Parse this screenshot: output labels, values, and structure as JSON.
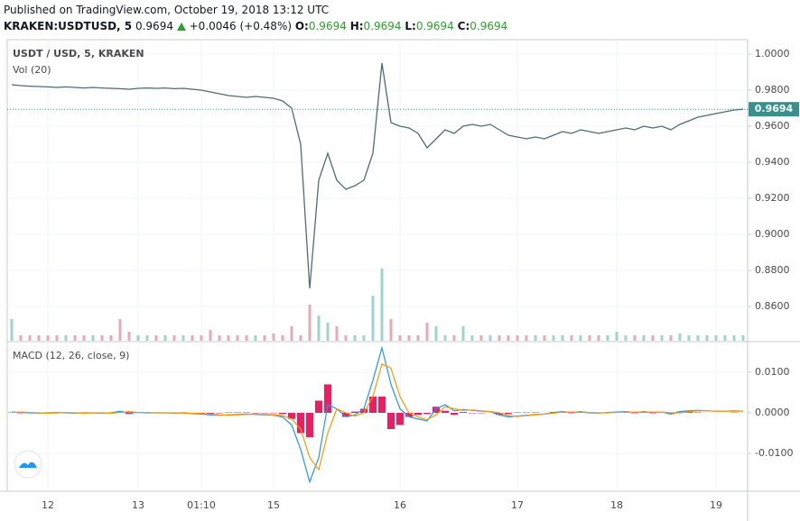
{
  "header": {
    "published": "Published on TradingView.com, October 19, 2018 13:12 UTC",
    "symbol": "KRAKEN:USDTUSD, 5",
    "price": "0.9694",
    "change": "+0.0046 (+0.48%)",
    "ohlc": [
      {
        "label": "O:",
        "value": "0.9694"
      },
      {
        "label": "H:",
        "value": "0.9694"
      },
      {
        "label": "L:",
        "value": "0.9694"
      },
      {
        "label": "C:",
        "value": "0.9694"
      }
    ]
  },
  "chart_data": [
    {
      "type": "line",
      "title": "USDT / USD, 5, KRAKEN",
      "color": "#4e6e6c",
      "categories": [
        null,
        null,
        null,
        null,
        "12",
        null,
        null,
        null,
        null,
        null,
        null,
        null,
        null,
        null,
        "13",
        null,
        null,
        null,
        null,
        null,
        null,
        "01:10",
        null,
        null,
        null,
        null,
        null,
        null,
        null,
        "15",
        null,
        null,
        null,
        null,
        null,
        null,
        null,
        null,
        null,
        null,
        null,
        null,
        null,
        "16",
        null,
        null,
        null,
        null,
        null,
        null,
        null,
        null,
        null,
        null,
        null,
        null,
        "17",
        null,
        null,
        null,
        null,
        null,
        null,
        null,
        null,
        null,
        null,
        "18",
        null,
        null,
        null,
        null,
        null,
        null,
        null,
        null,
        null,
        null,
        "19",
        null,
        null,
        null
      ],
      "values": [
        0.983,
        0.9825,
        0.9822,
        0.982,
        0.9818,
        0.9815,
        0.9818,
        0.9815,
        0.9812,
        0.9815,
        0.9812,
        0.981,
        0.9808,
        0.9805,
        0.981,
        0.9812,
        0.981,
        0.9812,
        0.9808,
        0.981,
        0.9805,
        0.98,
        0.979,
        0.978,
        0.977,
        0.9765,
        0.976,
        0.9765,
        0.976,
        0.9755,
        0.974,
        0.97,
        0.95,
        0.87,
        0.93,
        0.945,
        0.93,
        0.925,
        0.927,
        0.93,
        0.945,
        0.995,
        0.962,
        0.96,
        0.959,
        0.956,
        0.948,
        0.953,
        0.958,
        0.956,
        0.96,
        0.961,
        0.96,
        0.961,
        0.958,
        0.955,
        0.954,
        0.953,
        0.954,
        0.953,
        0.955,
        0.957,
        0.956,
        0.958,
        0.957,
        0.956,
        0.957,
        0.958,
        0.959,
        0.958,
        0.96,
        0.959,
        0.96,
        0.958,
        0.961,
        0.963,
        0.965,
        0.966,
        0.967,
        0.968,
        0.969,
        0.9694
      ],
      "ylim": [
        0.841,
        1.0075
      ],
      "yticks": [
        {
          "value": 0.86,
          "label": "0.8600"
        },
        {
          "value": 0.88,
          "label": "0.8800"
        },
        {
          "value": 0.9,
          "label": "0.9000"
        },
        {
          "value": 0.92,
          "label": "0.9200"
        },
        {
          "value": 0.94,
          "label": "0.9400"
        },
        {
          "value": 0.96,
          "label": "0.9600"
        },
        {
          "value": 0.98,
          "label": "0.9800"
        },
        {
          "value": 1.0,
          "label": "1.0000"
        }
      ],
      "last_price": 0.9694,
      "last_price_color": "#38918c",
      "grid": true,
      "volume": {
        "title": "Vol (20)",
        "ylim": [
          0,
          50
        ],
        "up_color": "#9fd4cd",
        "down_color": "#e6a9b6",
        "values": [
          12,
          3,
          3,
          3,
          3,
          3,
          3,
          3,
          3,
          3,
          3,
          3,
          12,
          5,
          3,
          3,
          3,
          3,
          3,
          3,
          3,
          3,
          6,
          3,
          3,
          3,
          3,
          3,
          3,
          4,
          3,
          8,
          3,
          20,
          14,
          10,
          8,
          3,
          3,
          3,
          25,
          40,
          12,
          3,
          3,
          3,
          10,
          8,
          3,
          3,
          8,
          3,
          3,
          3,
          3,
          3,
          3,
          3,
          3,
          3,
          3,
          3,
          3,
          3,
          3,
          3,
          3,
          5,
          3,
          3,
          3,
          3,
          3,
          3,
          4,
          3,
          3,
          3,
          3,
          3,
          3,
          3
        ]
      }
    },
    {
      "type": "macd",
      "title": "MACD (12, 26, close, 9)",
      "ylim": [
        -0.0193,
        0.0173
      ],
      "yticks": [
        {
          "value": -0.01,
          "label": "-0.0100"
        },
        {
          "value": 0,
          "label": "0.0000"
        },
        {
          "value": 0.01,
          "label": "0.0100"
        }
      ],
      "grid": true,
      "series": [
        {
          "kind": "bar",
          "color": "#e91e63",
          "values": [
            0.0001,
            -0.0001,
            -0.0001,
            -0.0001,
            0.0001,
            0.0001,
            -0.0001,
            -0.0001,
            0.0001,
            0,
            -0.0001,
            0.0001,
            0.0003,
            -0.0003,
            0,
            -0.0001,
            0,
            0,
            -0.0001,
            0.0001,
            -0.0001,
            -0.0001,
            -0.0002,
            -0.0001,
            0.0001,
            0.0001,
            0.0001,
            -0.0001,
            -0.0001,
            -0.0001,
            -0.0003,
            -0.0015,
            -0.005,
            -0.006,
            0.003,
            0.007,
            0,
            -0.001,
            0.0003,
            0.001,
            0.004,
            0.004,
            -0.004,
            -0.003,
            -0.001,
            -0.0005,
            -0.0003,
            0.0015,
            0.0005,
            -0.0005,
            0.0002,
            -0.0001,
            -0.0001,
            0,
            -0.0005,
            -0.0003,
            0.0001,
            0.0001,
            0.0001,
            0,
            0.0002,
            0.0001,
            -0.0001,
            0.0001,
            -0.0001,
            -0.0001,
            0.0001,
            0.0001,
            0.0001,
            -0.0001,
            0.0001,
            -0.0001,
            0,
            -0.0003,
            0.0003,
            0.0002,
            0.0001,
            0,
            0,
            0,
            0.0001,
            0
          ]
        },
        {
          "kind": "line",
          "color": "#2196f3",
          "values": [
            0.0002,
            0.0001,
            0,
            -0.0001,
            0,
            0.0001,
            0,
            -0.0001,
            0,
            0,
            -0.0001,
            0,
            0.0004,
            0,
            0.0001,
            0,
            0,
            0,
            -0.0001,
            0,
            -0.0002,
            -0.0003,
            -0.0005,
            -0.0006,
            -0.0005,
            -0.0004,
            -0.0003,
            -0.0004,
            -0.0005,
            -0.0006,
            -0.001,
            -0.003,
            -0.009,
            -0.017,
            -0.011,
            0.002,
            0.001,
            -0.001,
            -0.0005,
            0.001,
            0.008,
            0.016,
            0.007,
            0.001,
            -0.001,
            -0.0015,
            -0.002,
            0.001,
            0.002,
            0.0005,
            0.0008,
            0.0006,
            0.0004,
            0.0003,
            -0.0005,
            -0.001,
            -0.0008,
            -0.0006,
            -0.0004,
            -0.0003,
            0.0001,
            0.0003,
            0.0001,
            0.0003,
            0,
            -0.0001,
            0.0001,
            0.0002,
            0.0003,
            0.0001,
            0.0003,
            0.0001,
            0.0002,
            -0.0003,
            0.0003,
            0.0005,
            0.0006,
            0.0005,
            0.0004,
            0.0004,
            0.0005,
            0.0004
          ]
        },
        {
          "kind": "line",
          "color": "#ff9800",
          "values": [
            0.0001,
            0.0002,
            0.0001,
            0,
            -0.0001,
            0,
            0.0001,
            0,
            -0.0001,
            0,
            0,
            -0.0001,
            0.0001,
            0.0003,
            0.0001,
            0.0001,
            0,
            0,
            0,
            -0.0001,
            -0.0001,
            -0.0002,
            -0.0003,
            -0.0005,
            -0.0006,
            -0.0005,
            -0.0004,
            -0.0003,
            -0.0004,
            -0.0005,
            -0.0007,
            -0.0015,
            -0.004,
            -0.011,
            -0.014,
            -0.005,
            0.001,
            0,
            -0.0008,
            0,
            0.004,
            0.012,
            0.011,
            0.004,
            0,
            -0.001,
            -0.0017,
            -0.0005,
            0.0015,
            0.001,
            0.0006,
            0.0007,
            0.0005,
            0.0003,
            0,
            -0.0007,
            -0.0009,
            -0.0007,
            -0.0005,
            -0.0003,
            -0.0001,
            0.0002,
            0.0002,
            0.0002,
            0.0001,
            0,
            0,
            0.0001,
            0.0002,
            0.0002,
            0.0002,
            0.0002,
            0.0002,
            0,
            0,
            0.0003,
            0.0005,
            0.0005,
            0.0004,
            0.0004,
            0.0004,
            0.0004
          ]
        }
      ]
    }
  ]
}
